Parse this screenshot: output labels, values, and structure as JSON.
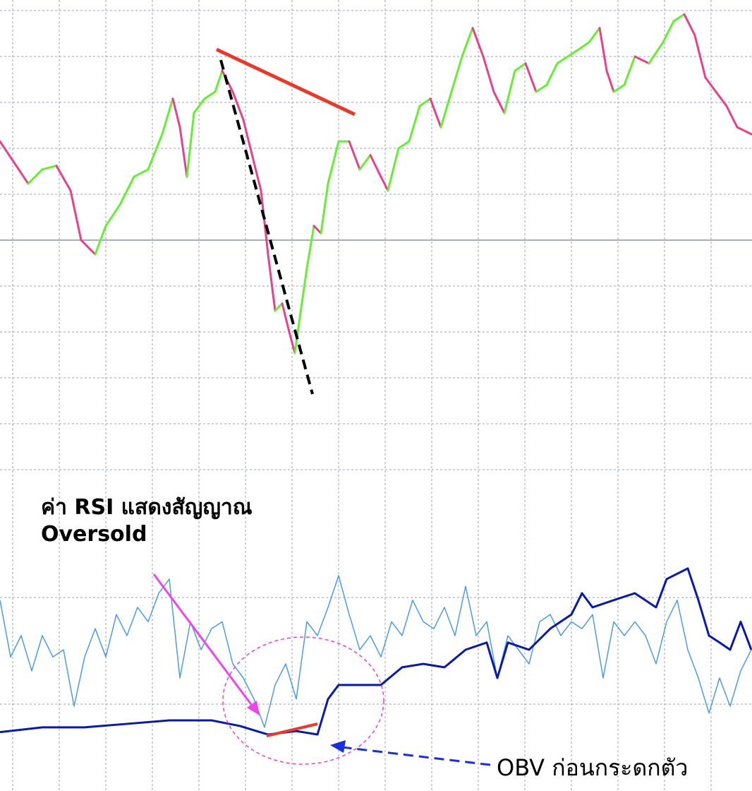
{
  "chart_data": [
    {
      "type": "price",
      "x": [
        0,
        20,
        40,
        60,
        80,
        100,
        115,
        135,
        150,
        170,
        190,
        210,
        230,
        245,
        255,
        265,
        275,
        290,
        305,
        315,
        330,
        345,
        360,
        370,
        380,
        390,
        400,
        410,
        418,
        425,
        435,
        445,
        455,
        465,
        480,
        495,
        510,
        525,
        540,
        550,
        565,
        580,
        595,
        610,
        625,
        640,
        655,
        670,
        685,
        700,
        715,
        730,
        745,
        760,
        775,
        790,
        805,
        820,
        835,
        850,
        860,
        870,
        885,
        900,
        920,
        940,
        955,
        970,
        985,
        1000,
        1015,
        1030,
        1045,
        1065
      ],
      "values": [
        71.5,
        66.9,
        62.3,
        65.4,
        66.2,
        60.8,
        50,
        46.9,
        53.1,
        57.7,
        63.8,
        65.4,
        73.1,
        80.8,
        74.6,
        63.8,
        77.7,
        80.8,
        82.3,
        86.9,
        82.3,
        76.2,
        66.9,
        60.8,
        46.9,
        34.6,
        36.2,
        30,
        25.4,
        33.1,
        43.8,
        53.1,
        51.5,
        62.3,
        71.5,
        71.5,
        65.4,
        68.5,
        63.8,
        60.8,
        70,
        71.5,
        79.2,
        80.8,
        74.6,
        82.3,
        90,
        96.2,
        90,
        82.3,
        77.7,
        86.9,
        88.5,
        82.3,
        83.8,
        88.5,
        90,
        91.5,
        93.1,
        96.2,
        86.9,
        82.3,
        83.8,
        90,
        88.5,
        93.1,
        97.7,
        99.2,
        94.6,
        85.4,
        82.3,
        79.2,
        74.6,
        73.1
      ],
      "up_color": "#66ee33",
      "down_color": "#e6418a",
      "xlim": [
        0,
        1066
      ],
      "ylim": [
        0,
        100
      ],
      "xticks": [
        18,
        84,
        150,
        216,
        282,
        348,
        414,
        480,
        546,
        612,
        678,
        744,
        810,
        876,
        942,
        1008
      ],
      "yticks": [
        0,
        10,
        20,
        30,
        40,
        60,
        70,
        80,
        90,
        100
      ],
      "midline": 50
    },
    {
      "type": "line",
      "xlim": [
        0,
        1066
      ],
      "ylim": [
        0,
        100
      ],
      "yticks": [
        30,
        70
      ],
      "series": [
        {
          "color": "#4a9be8",
          "width": 1.5,
          "x": [
            0,
            15,
            30,
            45,
            60,
            75,
            90,
            105,
            120,
            135,
            150,
            165,
            180,
            195,
            210,
            225,
            240,
            255,
            270,
            285,
            300,
            315,
            330,
            345,
            360,
            375,
            390,
            405,
            420,
            435,
            450,
            465,
            480,
            495,
            510,
            525,
            540,
            555,
            570,
            585,
            600,
            615,
            630,
            645,
            660,
            675,
            690,
            705,
            720,
            735,
            750,
            765,
            780,
            795,
            810,
            825,
            840,
            855,
            870,
            885,
            900,
            915,
            930,
            945,
            960,
            975,
            990,
            1005,
            1020,
            1035,
            1050,
            1065
          ],
          "values": [
            69,
            47.7,
            55.7,
            42.5,
            55.7,
            47.7,
            50.4,
            29.2,
            47.7,
            58.3,
            47.7,
            63.6,
            55.7,
            66.3,
            60.9,
            71.6,
            76.9,
            39.8,
            60.9,
            50.4,
            58.3,
            60.9,
            45.1,
            39.8,
            31.9,
            21.3,
            37.2,
            45.1,
            31.9,
            60.9,
            55.7,
            66.3,
            78.2,
            63.6,
            50.4,
            55.7,
            47.7,
            60.9,
            55.7,
            69,
            60.9,
            58.3,
            66.3,
            55.7,
            74.2,
            55.7,
            60.9,
            39.8,
            55.7,
            50.4,
            45.1,
            60.9,
            63.6,
            55.7,
            60.9,
            58.3,
            63.6,
            39.8,
            60.9,
            55.7,
            60.9,
            55.7,
            45.1,
            60.9,
            69,
            50.4,
            39.8,
            26.6,
            39.8,
            29.2,
            42.5,
            50.4
          ]
        },
        {
          "color": "#0a1aa8",
          "width": 3,
          "x": [
            0,
            60,
            120,
            180,
            240,
            300,
            340,
            380,
            420,
            450,
            465,
            480,
            510,
            540,
            570,
            600,
            630,
            660,
            690,
            705,
            720,
            750,
            780,
            810,
            825,
            840,
            870,
            900,
            930,
            945,
            975,
            990,
            1005,
            1020,
            1035,
            1050,
            1065
          ],
          "values": [
            19.5,
            21.3,
            21.3,
            22.6,
            23.9,
            23.9,
            21.8,
            18.6,
            19.9,
            18.6,
            31.9,
            37.2,
            37.2,
            37.2,
            43.8,
            45.1,
            43.8,
            50.4,
            53.1,
            39.8,
            53.1,
            50.4,
            58.3,
            63.6,
            71.6,
            66.3,
            69,
            71.6,
            66.3,
            76.9,
            80.9,
            69,
            55.7,
            53.1,
            50.4,
            60.9,
            50.4
          ]
        }
      ]
    }
  ],
  "annotations": [
    "ค่า RSI แสดงสัญญาณ Oversold",
    "OBV ก่อนกระดกตัว"
  ]
}
